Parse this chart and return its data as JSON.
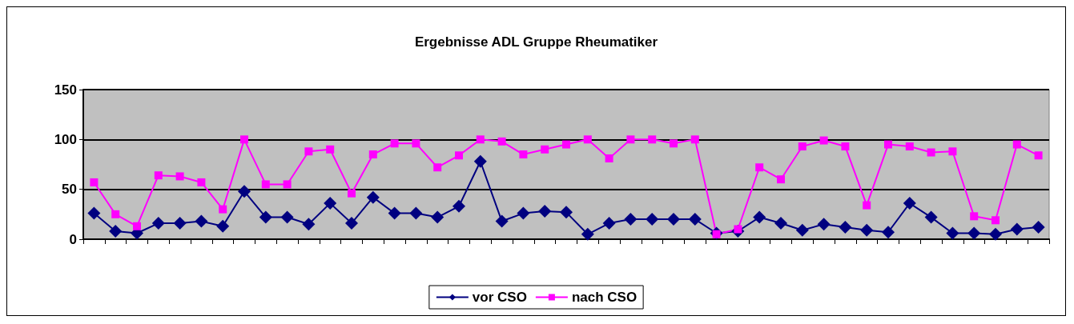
{
  "chart_data": {
    "type": "line",
    "title": "Ergebnisse ADL Gruppe Rheumatiker",
    "categories": [
      null,
      null,
      null,
      null,
      null,
      null,
      null,
      null,
      null,
      null,
      null,
      null,
      null,
      null,
      null,
      null,
      null,
      null,
      null,
      null,
      null,
      null,
      null,
      null,
      null,
      null,
      null,
      null,
      null,
      null,
      null,
      null,
      null,
      null,
      null,
      null,
      null,
      null,
      null,
      null,
      null,
      null,
      null,
      null,
      null
    ],
    "series": [
      {
        "name": "vor CSO",
        "color": "#000080",
        "marker": "diamond",
        "values": [
          26,
          8,
          6,
          16,
          16,
          18,
          13,
          48,
          22,
          22,
          15,
          36,
          16,
          42,
          26,
          26,
          22,
          33,
          78,
          18,
          26,
          28,
          27,
          5,
          16,
          20,
          20,
          20,
          20,
          6,
          8,
          22,
          16,
          9,
          15,
          12,
          9,
          7,
          36,
          22,
          6,
          6,
          5,
          10,
          12
        ]
      },
      {
        "name": "nach CSO",
        "color": "#ff00ff",
        "marker": "square",
        "values": [
          57,
          25,
          13,
          64,
          63,
          57,
          30,
          100,
          55,
          55,
          88,
          90,
          46,
          85,
          96,
          96,
          72,
          84,
          100,
          98,
          85,
          90,
          95,
          100,
          81,
          100,
          100,
          96,
          100,
          5,
          10,
          72,
          60,
          93,
          99,
          93,
          34,
          95,
          93,
          87,
          88,
          23,
          19,
          95,
          84
        ]
      }
    ],
    "ylim": [
      0,
      150
    ],
    "yticks": [
      0,
      50,
      100,
      150
    ],
    "grid": "y",
    "legend": "bottom"
  }
}
